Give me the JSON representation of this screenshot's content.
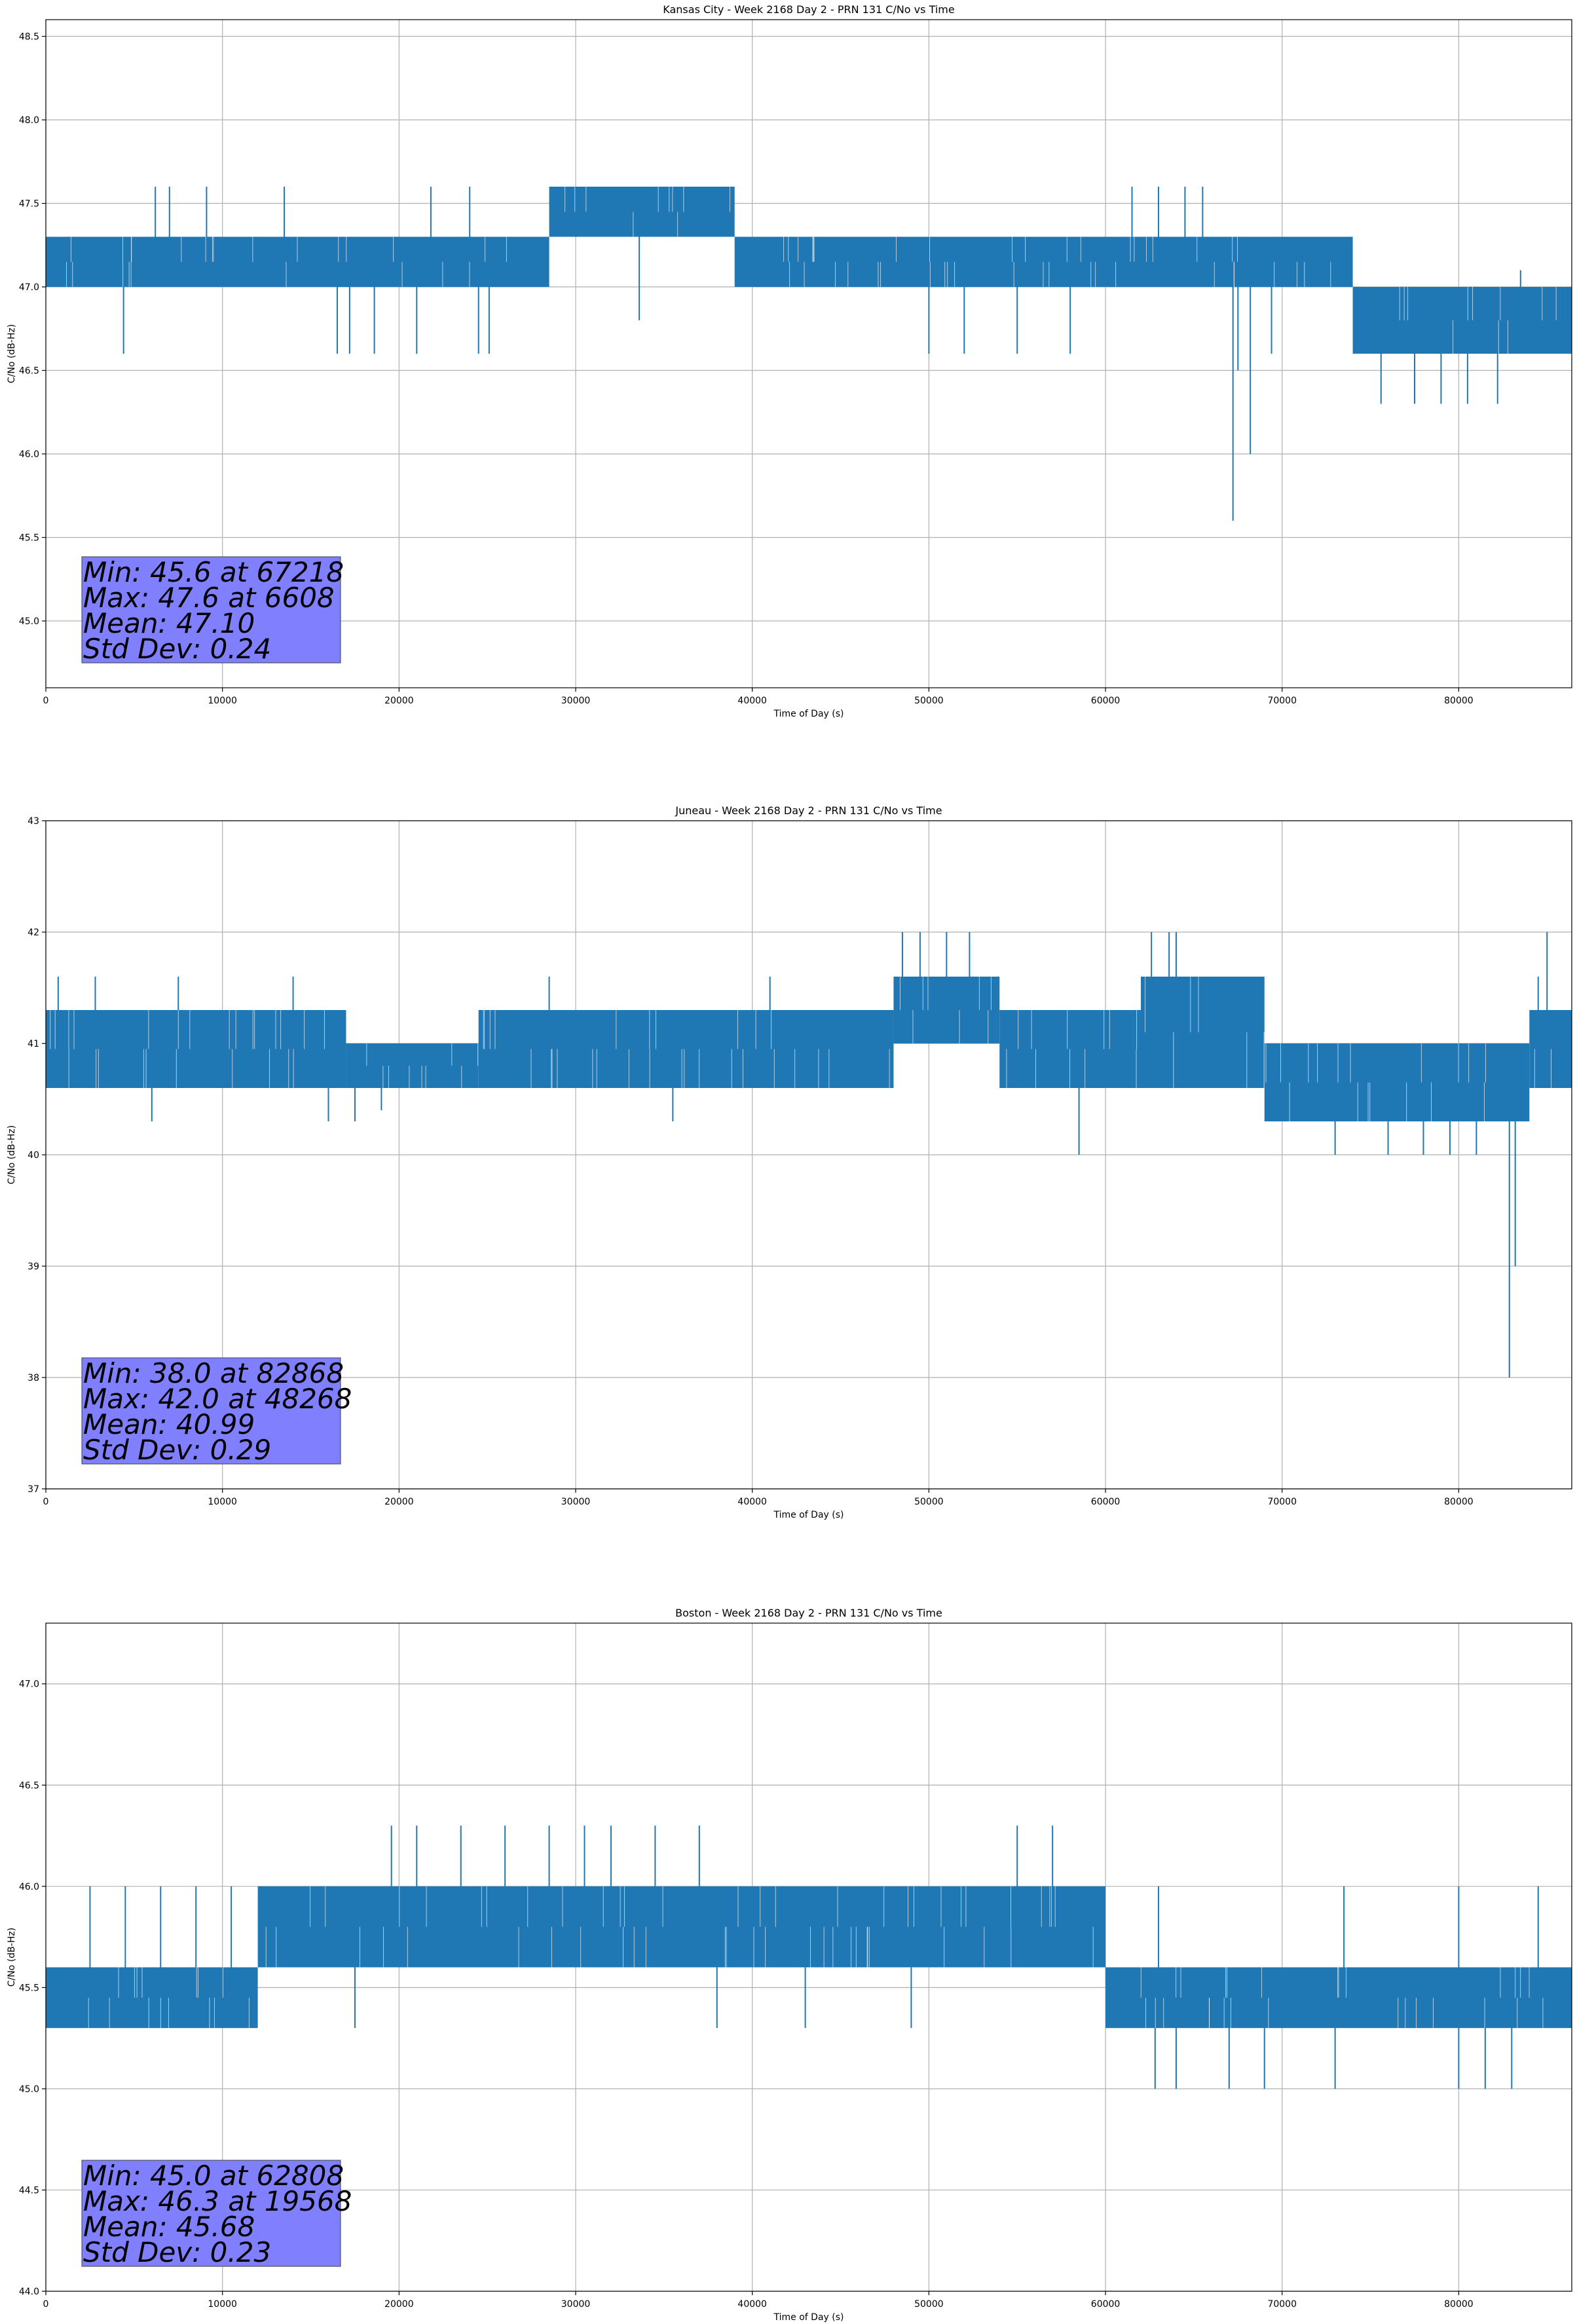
{
  "chart_data": [
    {
      "type": "line",
      "title": "Kansas City - Week 2168 Day 2 - PRN 131 C/No vs Time",
      "xlabel": "Time of Day (s)",
      "ylabel": "C/No (dB-Hz)",
      "xlim": [
        0,
        86400
      ],
      "ylim": [
        44.6,
        48.6
      ],
      "xticks": [
        0,
        10000,
        20000,
        30000,
        40000,
        50000,
        60000,
        70000,
        80000
      ],
      "xtick_labels": [
        "0",
        "10000",
        "20000",
        "30000",
        "40000",
        "50000",
        "60000",
        "70000",
        "80000"
      ],
      "yticks": [
        45.0,
        45.5,
        46.0,
        46.5,
        47.0,
        47.5,
        48.0,
        48.5
      ],
      "ytick_labels": [
        "45.0",
        "45.5",
        "46.0",
        "46.5",
        "47.0",
        "47.5",
        "48.0",
        "48.5"
      ],
      "grid": true,
      "line_color": "#1f77b4",
      "segments": [
        {
          "x0": 0,
          "x1": 28500,
          "lo": 47.0,
          "hi": 47.3
        },
        {
          "x0": 28500,
          "x1": 39000,
          "lo": 47.3,
          "hi": 47.6
        },
        {
          "x0": 39000,
          "x1": 74000,
          "lo": 47.0,
          "hi": 47.3
        },
        {
          "x0": 74000,
          "x1": 86400,
          "lo": 46.6,
          "hi": 47.0
        }
      ],
      "spikes": [
        [
          4400,
          46.6
        ],
        [
          6200,
          47.6
        ],
        [
          7000,
          47.6
        ],
        [
          9100,
          47.6
        ],
        [
          13500,
          47.6
        ],
        [
          16500,
          46.6
        ],
        [
          17200,
          46.6
        ],
        [
          18600,
          46.6
        ],
        [
          21000,
          46.6
        ],
        [
          21800,
          47.6
        ],
        [
          24000,
          47.6
        ],
        [
          24500,
          46.6
        ],
        [
          25100,
          46.6
        ],
        [
          33600,
          46.8
        ],
        [
          50000,
          46.6
        ],
        [
          52000,
          46.6
        ],
        [
          55000,
          46.6
        ],
        [
          58000,
          46.6
        ],
        [
          61500,
          47.6
        ],
        [
          63000,
          47.6
        ],
        [
          64500,
          47.6
        ],
        [
          65500,
          47.6
        ],
        [
          67218,
          45.6
        ],
        [
          67500,
          46.5
        ],
        [
          68200,
          46.0
        ],
        [
          69400,
          46.6
        ],
        [
          75600,
          46.3
        ],
        [
          77500,
          46.3
        ],
        [
          79000,
          46.3
        ],
        [
          80500,
          46.3
        ],
        [
          82200,
          46.3
        ],
        [
          83500,
          47.1
        ],
        [
          85500,
          46.6
        ]
      ],
      "stats": [
        "Min: 45.6 at 67218",
        "Max: 47.6 at 6608",
        "Mean: 47.10",
        "Std Dev: 0.24"
      ]
    },
    {
      "type": "line",
      "title": "Juneau - Week 2168 Day 2 - PRN 131 C/No vs Time",
      "xlabel": "Time of Day (s)",
      "ylabel": "C/No (dB-Hz)",
      "xlim": [
        0,
        86400
      ],
      "ylim": [
        37,
        43
      ],
      "xticks": [
        0,
        10000,
        20000,
        30000,
        40000,
        50000,
        60000,
        70000,
        80000
      ],
      "xtick_labels": [
        "0",
        "10000",
        "20000",
        "30000",
        "40000",
        "50000",
        "60000",
        "70000",
        "80000"
      ],
      "yticks": [
        37,
        38,
        39,
        40,
        41,
        42,
        43
      ],
      "ytick_labels": [
        "37",
        "38",
        "39",
        "40",
        "41",
        "42",
        "43"
      ],
      "grid": true,
      "line_color": "#1f77b4",
      "segments": [
        {
          "x0": 0,
          "x1": 17000,
          "lo": 40.6,
          "hi": 41.3
        },
        {
          "x0": 17000,
          "x1": 24500,
          "lo": 40.6,
          "hi": 41.0
        },
        {
          "x0": 24500,
          "x1": 48000,
          "lo": 40.6,
          "hi": 41.3
        },
        {
          "x0": 48000,
          "x1": 54000,
          "lo": 41.0,
          "hi": 41.6
        },
        {
          "x0": 54000,
          "x1": 62000,
          "lo": 40.6,
          "hi": 41.3
        },
        {
          "x0": 62000,
          "x1": 69000,
          "lo": 40.6,
          "hi": 41.6
        },
        {
          "x0": 69000,
          "x1": 84000,
          "lo": 40.3,
          "hi": 41.0
        },
        {
          "x0": 84000,
          "x1": 86400,
          "lo": 40.6,
          "hi": 41.3
        }
      ],
      "spikes": [
        [
          700,
          41.6
        ],
        [
          2800,
          41.6
        ],
        [
          7500,
          41.6
        ],
        [
          14000,
          41.6
        ],
        [
          6000,
          40.3
        ],
        [
          16000,
          40.3
        ],
        [
          17500,
          40.3
        ],
        [
          19000,
          40.4
        ],
        [
          28500,
          41.6
        ],
        [
          35500,
          40.3
        ],
        [
          41000,
          41.6
        ],
        [
          48500,
          42.0
        ],
        [
          49500,
          42.0
        ],
        [
          51000,
          42.0
        ],
        [
          52300,
          42.0
        ],
        [
          58500,
          40.0
        ],
        [
          62600,
          42.0
        ],
        [
          63600,
          42.0
        ],
        [
          64000,
          42.0
        ],
        [
          67000,
          41.6
        ],
        [
          73000,
          40.0
        ],
        [
          76000,
          40.0
        ],
        [
          78000,
          40.0
        ],
        [
          79500,
          40.0
        ],
        [
          81000,
          40.0
        ],
        [
          82868,
          38.0
        ],
        [
          83200,
          39.0
        ],
        [
          84500,
          41.6
        ],
        [
          85000,
          42.0
        ]
      ],
      "stats": [
        "Min: 38.0 at 82868",
        "Max: 42.0 at 48268",
        "Mean: 40.99",
        "Std Dev: 0.29"
      ]
    },
    {
      "type": "line",
      "title": "Boston - Week 2168 Day 2 - PRN 131 C/No vs Time",
      "xlabel": "Time of Day (s)",
      "ylabel": "C/No (dB-Hz)",
      "xlim": [
        0,
        86400
      ],
      "ylim": [
        44.0,
        47.3
      ],
      "xticks": [
        0,
        10000,
        20000,
        30000,
        40000,
        50000,
        60000,
        70000,
        80000
      ],
      "xtick_labels": [
        "0",
        "10000",
        "20000",
        "30000",
        "40000",
        "50000",
        "60000",
        "70000",
        "80000"
      ],
      "yticks": [
        44.0,
        44.5,
        45.0,
        45.5,
        46.0,
        46.5,
        47.0
      ],
      "ytick_labels": [
        "44.0",
        "44.5",
        "45.0",
        "45.5",
        "46.0",
        "46.5",
        "47.0"
      ],
      "grid": true,
      "line_color": "#1f77b4",
      "segments": [
        {
          "x0": 0,
          "x1": 12000,
          "lo": 45.3,
          "hi": 45.6
        },
        {
          "x0": 12000,
          "x1": 60000,
          "lo": 45.6,
          "hi": 46.0
        },
        {
          "x0": 60000,
          "x1": 86400,
          "lo": 45.3,
          "hi": 45.6
        }
      ],
      "spikes": [
        [
          2500,
          46.0
        ],
        [
          4500,
          46.0
        ],
        [
          6500,
          46.0
        ],
        [
          8500,
          46.0
        ],
        [
          10500,
          46.0
        ],
        [
          17500,
          45.3
        ],
        [
          19568,
          46.3
        ],
        [
          21000,
          46.3
        ],
        [
          23500,
          46.3
        ],
        [
          26000,
          46.3
        ],
        [
          28500,
          46.3
        ],
        [
          30500,
          46.3
        ],
        [
          32000,
          46.3
        ],
        [
          34500,
          46.3
        ],
        [
          37000,
          46.3
        ],
        [
          38000,
          45.3
        ],
        [
          43000,
          45.3
        ],
        [
          49000,
          45.3
        ],
        [
          55000,
          46.3
        ],
        [
          57000,
          46.3
        ],
        [
          62808,
          45.0
        ],
        [
          64000,
          45.0
        ],
        [
          67000,
          45.0
        ],
        [
          69000,
          45.0
        ],
        [
          73000,
          45.0
        ],
        [
          80000,
          45.0
        ],
        [
          81500,
          45.0
        ],
        [
          83000,
          45.0
        ],
        [
          63000,
          46.0
        ],
        [
          73500,
          46.0
        ],
        [
          80000,
          46.0
        ],
        [
          84500,
          46.0
        ]
      ],
      "stats": [
        "Min: 45.0 at 62808",
        "Max: 46.3 at 19568",
        "Mean: 45.68",
        "Std Dev: 0.23"
      ]
    }
  ]
}
